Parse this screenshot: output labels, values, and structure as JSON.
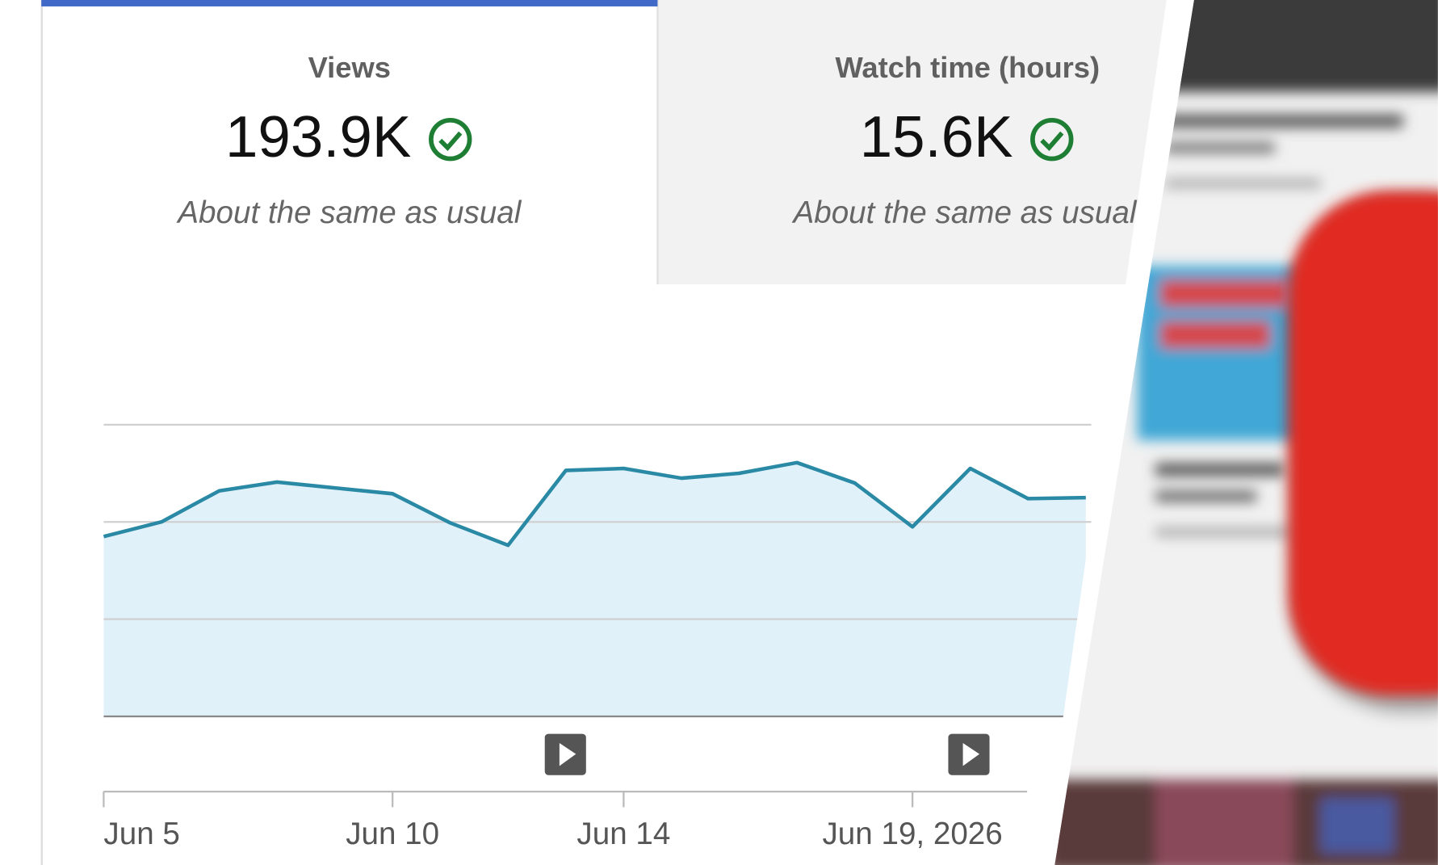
{
  "cards": [
    {
      "label": "Views",
      "value": "193.9K",
      "note": "About the same as usual"
    },
    {
      "label": "Watch time (hours)",
      "value": "15.6K",
      "note": "About the same as usual"
    }
  ],
  "chart_data": {
    "type": "line",
    "categories": [
      "Jun 5",
      null,
      null,
      null,
      null,
      "Jun 10",
      null,
      null,
      null,
      "Jun 14",
      null,
      null,
      null,
      null,
      "Jun 19, 2026",
      null,
      null,
      null
    ],
    "series": [
      {
        "color": "#2a8aa5",
        "fill": "#e1f1fa",
        "values": [
          1.85,
          2.0,
          2.32,
          2.41,
          2.35,
          2.29,
          1.99,
          1.76,
          2.53,
          2.55,
          2.45,
          2.5,
          2.61,
          2.4,
          1.95,
          2.55,
          2.24,
          2.25
        ]
      }
    ],
    "ylim": [
      0,
      3
    ],
    "yticks": [
      0,
      1,
      2,
      3
    ],
    "grid": true
  }
}
